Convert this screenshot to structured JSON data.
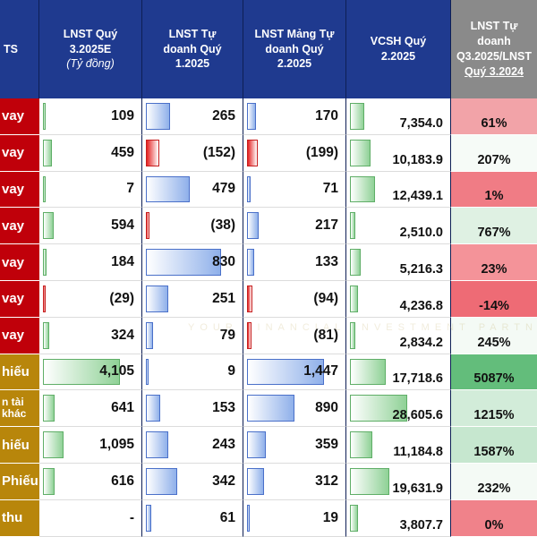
{
  "headers": [
    {
      "lines": [
        "TS"
      ],
      "italic": "",
      "underline": ""
    },
    {
      "lines": [
        "LNST Quý",
        "3.2025E"
      ],
      "italic": "(Tỷ đồng)",
      "underline": ""
    },
    {
      "lines": [
        "LNST Tự",
        "doanh Quý",
        "1.2025"
      ],
      "italic": "",
      "underline": ""
    },
    {
      "lines": [
        "LNST Mảng Tự",
        "doanh Quý",
        "2.2025"
      ],
      "italic": "",
      "underline": ""
    },
    {
      "lines": [
        "VCSH Quý",
        "2.2025"
      ],
      "italic": "",
      "underline": ""
    },
    {
      "lines": [
        "LNST Tự",
        "doanh",
        "Q3.2025/LNST"
      ],
      "italic": "",
      "underline": "Quý 3.2024"
    }
  ],
  "rows": [
    {
      "label": "vay",
      "label2": "",
      "type": "red",
      "c1": "109",
      "c2": "265",
      "c3": "170",
      "vcsh": "7,354.0",
      "pct": "61%",
      "pct_color": "#f2a3a8"
    },
    {
      "label": "vay",
      "label2": "",
      "type": "red",
      "c1": "459",
      "c2": "(152)",
      "c3": "(199)",
      "vcsh": "10,183.9",
      "pct": "207%",
      "pct_color": "#f6fbf7"
    },
    {
      "label": "vay",
      "label2": "",
      "type": "red",
      "c1": "7",
      "c2": "479",
      "c3": "71",
      "vcsh": "12,439.1",
      "pct": "1%",
      "pct_color": "#f07c85"
    },
    {
      "label": "vay",
      "label2": "",
      "type": "red",
      "c1": "594",
      "c2": "(38)",
      "c3": "217",
      "vcsh": "2,510.0",
      "pct": "767%",
      "pct_color": "#dff1e3"
    },
    {
      "label": "vay",
      "label2": "",
      "type": "red",
      "c1": "184",
      "c2": "830",
      "c3": "133",
      "vcsh": "5,216.3",
      "pct": "23%",
      "pct_color": "#f49399"
    },
    {
      "label": "vay",
      "label2": "",
      "type": "red",
      "c1": "(29)",
      "c2": "251",
      "c3": "(94)",
      "vcsh": "4,236.8",
      "pct": "-14%",
      "pct_color": "#ee6b75"
    },
    {
      "label": "vay",
      "label2": "",
      "type": "red",
      "c1": "324",
      "c2": "79",
      "c3": "(81)",
      "vcsh": "2,834.2",
      "pct": "245%",
      "pct_color": "#f4faf5"
    },
    {
      "label": "hiếu",
      "label2": "",
      "type": "gold",
      "c1": "4,105",
      "c2": "9",
      "c3": "1,447",
      "vcsh": "17,718.6",
      "pct": "5087%",
      "pct_color": "#63bd7b"
    },
    {
      "label": "n tài",
      "label2": "khác",
      "type": "gold",
      "c1": "641",
      "c2": "153",
      "c3": "890",
      "vcsh": "28,605.6",
      "pct": "1215%",
      "pct_color": "#d2ecd9"
    },
    {
      "label": "hiếu",
      "label2": "",
      "type": "gold",
      "c1": "1,095",
      "c2": "243",
      "c3": "359",
      "vcsh": "11,184.8",
      "pct": "1587%",
      "pct_color": "#c6e7cf"
    },
    {
      "label": "Phiếu",
      "label2": "",
      "type": "gold",
      "c1": "616",
      "c2": "342",
      "c3": "312",
      "vcsh": "19,631.9",
      "pct": "232%",
      "pct_color": "#f4faf5"
    },
    {
      "label": "thu",
      "label2": "",
      "type": "gold",
      "c1": "-",
      "c2": "61",
      "c3": "19",
      "vcsh": "3,807.7",
      "pct": "0%",
      "pct_color": "#f0828a"
    }
  ],
  "watermark": "YOUR FINANCIAL INVESTMENT PARTNER"
}
